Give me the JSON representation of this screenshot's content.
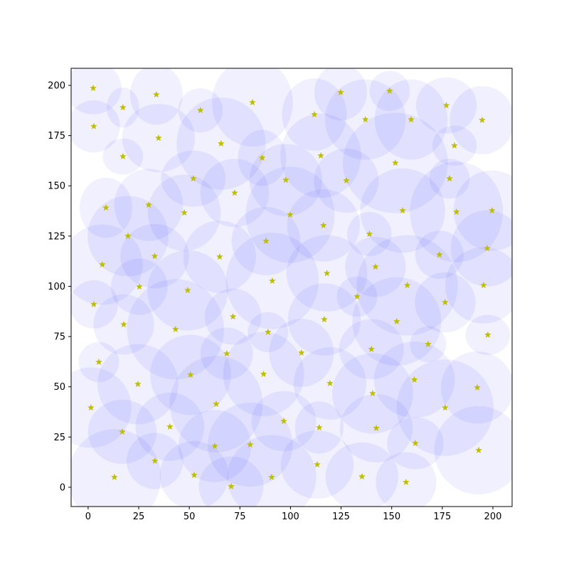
{
  "chart_data": {
    "type": "scatter",
    "x": [
      2.5,
      33.7,
      17.2,
      2.8,
      55.5,
      81.2,
      111.8,
      124.8,
      149,
      137,
      159.6,
      177,
      194.7,
      34.8,
      65.7,
      17.2,
      86,
      115,
      181,
      151.8,
      52,
      97.7,
      127.6,
      178.6,
      72.4,
      8.8,
      29.9,
      47.5,
      99.8,
      155.4,
      182,
      199.6,
      116.3,
      19.7,
      87.9,
      139,
      197.2,
      7,
      32.9,
      65,
      142,
      173.6,
      118,
      25.3,
      49.2,
      91,
      157.7,
      195.4,
      2.8,
      132.9,
      176.4,
      17.6,
      116.7,
      152.5,
      43.2,
      71.6,
      88.9,
      197.5,
      68.5,
      105.4,
      168,
      140,
      5.3,
      50.6,
      86.7,
      119.5,
      24.6,
      161.2,
      192.3,
      140.6,
      1.4,
      63.3,
      176.4,
      96.7,
      40.4,
      114.2,
      142.4,
      16.9,
      62.6,
      80.1,
      161.7,
      193,
      33,
      113.2,
      13,
      52.4,
      90.7,
      135.3,
      70.7,
      157.1
    ],
    "y": [
      198.6,
      195.4,
      189,
      179.6,
      187.6,
      191.5,
      185.5,
      196.5,
      197.2,
      183,
      183,
      190,
      182.7,
      173.8,
      171,
      164.6,
      163.9,
      165,
      170,
      161.4,
      153.6,
      152.9,
      152.6,
      153.6,
      146.5,
      139.1,
      140.5,
      136.6,
      135.6,
      137.7,
      137,
      137.7,
      130.3,
      125,
      122.5,
      126,
      118.9,
      110.8,
      115,
      114.7,
      109.7,
      115.7,
      106.5,
      99.8,
      98,
      102.7,
      100.5,
      100.5,
      91,
      94.9,
      92,
      81,
      83.5,
      82.5,
      78.6,
      84.9,
      77.2,
      75.8,
      66.5,
      66.9,
      71.2,
      68.7,
      62.3,
      55.9,
      56.3,
      51.7,
      51.3,
      53.5,
      49.6,
      46.7,
      39.6,
      41.4,
      39.6,
      32.9,
      30.1,
      29.7,
      29.4,
      27.6,
      20.5,
      21.2,
      21.9,
      18.4,
      13.1,
      11.3,
      5,
      6,
      5,
      5.3,
      0.4,
      2.5
    ],
    "widths": [
      28,
      26,
      16,
      26,
      22,
      40,
      32,
      26,
      20,
      40,
      36,
      30,
      32,
      36,
      44,
      20,
      24,
      40,
      22,
      52,
      32,
      36,
      32,
      20,
      34,
      26,
      34,
      36,
      44,
      42,
      46,
      38,
      36,
      40,
      34,
      22,
      36,
      40,
      34,
      36,
      30,
      24,
      40,
      28,
      40,
      46,
      50,
      38,
      24,
      20,
      30,
      30,
      36,
      44,
      48,
      28,
      20,
      22,
      26,
      32,
      18,
      32,
      20,
      40,
      40,
      36,
      40,
      40,
      36,
      40,
      40,
      46,
      48,
      32,
      34,
      24,
      36,
      34,
      36,
      42,
      28,
      44,
      28,
      36,
      46,
      34,
      44,
      36,
      32,
      30
    ],
    "heights": [
      26,
      30,
      20,
      26,
      22,
      44,
      36,
      28,
      20,
      40,
      40,
      28,
      34,
      34,
      46,
      18,
      28,
      42,
      20,
      50,
      28,
      36,
      32,
      20,
      34,
      30,
      36,
      38,
      48,
      42,
      50,
      40,
      36,
      40,
      34,
      22,
      38,
      40,
      32,
      36,
      30,
      24,
      38,
      28,
      40,
      48,
      50,
      38,
      24,
      20,
      30,
      30,
      36,
      44,
      50,
      28,
      20,
      20,
      26,
      34,
      18,
      30,
      20,
      40,
      42,
      36,
      40,
      38,
      36,
      40,
      40,
      48,
      48,
      30,
      34,
      26,
      34,
      32,
      36,
      42,
      26,
      44,
      28,
      34,
      48,
      34,
      42,
      34,
      30,
      30
    ],
    "marker_color": "#bfbf00",
    "ellipse_color": "#0000ff",
    "ellipse_alpha": 0.06,
    "xlim": [
      -8.4,
      209.5
    ],
    "ylim": [
      -9.6,
      208.5
    ],
    "xticks": [
      0,
      25,
      50,
      75,
      100,
      125,
      150,
      175,
      200
    ],
    "yticks": [
      0,
      25,
      50,
      75,
      100,
      125,
      150,
      175,
      200
    ]
  }
}
